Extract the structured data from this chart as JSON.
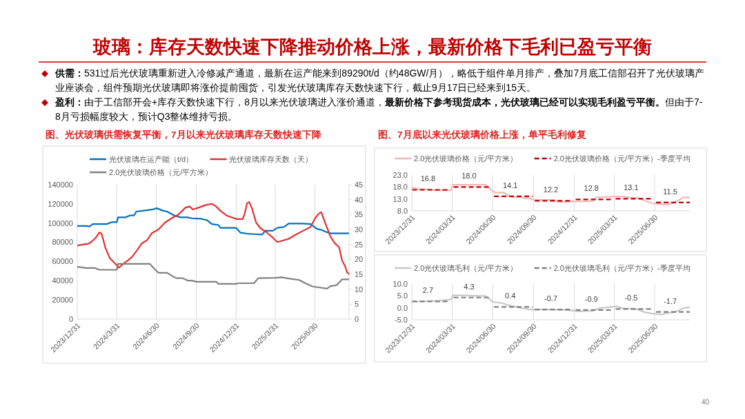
{
  "chart_data": [
    {
      "type": "other",
      "title": "玻璃：库存天数快速下降推动价格上涨，最新价格下毛利已盈亏平衡",
      "annotations": [
        "供需：",
        "531过后光伏玻璃重新进入冷修减产通道，最新在运产能来到89290t/d（约48GW/月），略低于组件单月排产，叠加7月底工信部召开了光伏玻璃产业座谈会，组件预期光伏玻璃即将涨价提前囤货，引发光伏玻璃库存天数快速下行，截止9月17日已经来到15天。",
        "盈利：",
        "由于工信部开会+库存天数快速下行，8月以来光伏玻璃进入涨价通道，",
        "最新价格下参考现货成本，光伏玻璃已经可以实现毛利盈亏平衡。",
        "但由于7-8月亏损幅度较大，预计Q3整体维持亏损。",
        "40"
      ]
    },
    {
      "type": "line",
      "title": "图、光伏玻璃供需恢复平衡，7月以来光伏玻璃库存天数快速下降",
      "xlim": [
        "2023-12-31",
        "2025-09-17"
      ],
      "xticks": [
        {
          "value": "2023-12-31",
          "label": "2023/12/31"
        },
        {
          "value": "2024-03-31",
          "label": "2024/3/31"
        },
        {
          "value": "2024-06-30",
          "label": "2024/6/30"
        },
        {
          "value": "2024-09-30",
          "label": "2024/9/30"
        },
        {
          "value": "2024-12-31",
          "label": "2024/12/31"
        },
        {
          "value": "2025-03-31",
          "label": "2025/3/31"
        },
        {
          "value": "2025-06-30",
          "label": "2025/6/30"
        }
      ],
      "ylim": [
        0,
        140000
      ],
      "yticks": [
        0,
        20000,
        40000,
        60000,
        80000,
        100000,
        120000,
        140000
      ],
      "y2lim": [
        0,
        45
      ],
      "y2ticks": [
        0,
        5,
        10,
        15,
        20,
        25,
        30,
        35,
        40,
        45
      ],
      "grid": "x",
      "legend": "top",
      "series": [
        {
          "name": "光伏玻璃在运产能（t/d）",
          "color": "#0070c0",
          "x": [
            "2023-12-31",
            "2024-01-20",
            "2024-01-28",
            "2024-02-05",
            "2024-03-08",
            "2024-03-20",
            "2024-03-31",
            "2024-04-03",
            "2024-04-20",
            "2024-05-01",
            "2024-05-10",
            "2024-05-15",
            "2024-06-01",
            "2024-06-20",
            "2024-07-01",
            "2024-07-15",
            "2024-07-25",
            "2024-08-10",
            "2024-08-25",
            "2024-09-10",
            "2024-09-20",
            "2024-10-10",
            "2024-10-25",
            "2024-11-05",
            "2024-11-20",
            "2024-11-25",
            "2024-12-31",
            "2025-01-10",
            "2025-01-25",
            "2025-02-10",
            "2025-03-01",
            "2025-03-08",
            "2025-03-25",
            "2025-04-05",
            "2025-04-20",
            "2025-05-01",
            "2025-06-01",
            "2025-06-20",
            "2025-07-05",
            "2025-07-15",
            "2025-07-25",
            "2025-08-05",
            "2025-09-17"
          ],
          "values": [
            97000,
            97000,
            96500,
            99000,
            99000,
            101000,
            101000,
            106000,
            106000,
            108000,
            108000,
            112000,
            113000,
            114000,
            115500,
            113000,
            112000,
            108000,
            106000,
            106000,
            105000,
            104500,
            103000,
            99000,
            98000,
            95000,
            95000,
            90000,
            89000,
            88500,
            88000,
            92000,
            92000,
            95000,
            96000,
            99500,
            99500,
            99000,
            94000,
            93000,
            91000,
            89300,
            89300
          ]
        },
        {
          "name": "光伏玻璃库存天数（天）",
          "color": "#e0302f",
          "axis": "y2",
          "x": [
            "2023-12-31",
            "2024-01-15",
            "2024-01-25",
            "2024-02-01",
            "2024-02-12",
            "2024-02-20",
            "2024-02-25",
            "2024-03-05",
            "2024-03-15",
            "2024-03-31",
            "2024-04-05",
            "2024-04-15",
            "2024-04-25",
            "2024-05-05",
            "2024-05-15",
            "2024-05-28",
            "2024-06-08",
            "2024-06-20",
            "2024-07-05",
            "2024-07-20",
            "2024-08-05",
            "2024-08-20",
            "2024-09-05",
            "2024-09-15",
            "2024-09-22",
            "2024-10-05",
            "2024-10-20",
            "2024-11-05",
            "2024-11-15",
            "2024-11-25",
            "2024-12-10",
            "2024-12-31",
            "2025-01-15",
            "2025-01-20",
            "2025-01-25",
            "2025-01-30",
            "2025-02-05",
            "2025-02-15",
            "2025-02-25",
            "2025-03-10",
            "2025-03-25",
            "2025-04-05",
            "2025-04-15",
            "2025-05-01",
            "2025-05-15",
            "2025-06-01",
            "2025-06-20",
            "2025-07-01",
            "2025-07-10",
            "2025-07-15",
            "2025-07-25",
            "2025-08-05",
            "2025-08-15",
            "2025-08-25",
            "2025-09-01",
            "2025-09-08",
            "2025-09-12",
            "2025-09-17"
          ],
          "values": [
            24.6,
            25,
            25.2,
            25.8,
            27.3,
            29,
            28.6,
            23.8,
            20.4,
            18,
            17.2,
            18.5,
            19.6,
            20.8,
            22.7,
            25.4,
            26.3,
            28.8,
            30,
            32.3,
            33.8,
            35,
            37.3,
            37.7,
            36.7,
            37.3,
            38.1,
            38.6,
            37.7,
            36.2,
            34.6,
            33.5,
            33.5,
            35.4,
            38.8,
            39.2,
            37.3,
            32.3,
            30.4,
            29.2,
            27.3,
            25.8,
            26.2,
            26.9,
            28.1,
            29.4,
            30.8,
            33.8,
            35.4,
            35.8,
            31.9,
            27.7,
            25.4,
            24.1,
            19.6,
            17.7,
            15.8,
            15
          ]
        },
        {
          "name": "2.0光伏玻璃价格（元/平方米）",
          "color": "#808080",
          "axis": "y2",
          "x": [
            "2023-12-31",
            "2024-01-20",
            "2024-02-10",
            "2024-02-20",
            "2024-03-31",
            "2024-04-03",
            "2024-06-15",
            "2024-06-25",
            "2024-07-05",
            "2024-07-25",
            "2024-08-05",
            "2024-08-15",
            "2024-08-30",
            "2024-09-10",
            "2024-09-20",
            "2024-10-01",
            "2024-11-15",
            "2024-11-20",
            "2024-12-31",
            "2025-01-05",
            "2025-02-10",
            "2025-02-20",
            "2025-04-01",
            "2025-04-15",
            "2025-05-01",
            "2025-05-25",
            "2025-06-10",
            "2025-06-25",
            "2025-07-15",
            "2025-07-28",
            "2025-08-05",
            "2025-08-20",
            "2025-09-01",
            "2025-09-17"
          ],
          "values": [
            17.5,
            17.1,
            17.1,
            16.5,
            16.5,
            18.5,
            18.5,
            16.9,
            15.5,
            15.5,
            14.5,
            13.7,
            13.7,
            12.9,
            12.9,
            12.5,
            12.5,
            11.8,
            11.8,
            12,
            12,
            13.7,
            13.8,
            14,
            13.6,
            13.1,
            11.9,
            10.9,
            10.5,
            10.2,
            11,
            11.4,
            13.3,
            13.3
          ]
        }
      ]
    },
    {
      "type": "line",
      "title": "图、7月底以来光伏玻璃价格上涨，单平毛利修复",
      "xlim": [
        "2023-12-31",
        "2025-09-17"
      ],
      "xticks": [
        {
          "value": "2023-12-31",
          "label": "2023/12/31"
        },
        {
          "value": "2024-03-31",
          "label": "2024/03/31"
        },
        {
          "value": "2024-06-30",
          "label": "2024/06/30"
        },
        {
          "value": "2024-09-30",
          "label": "2024/09/30"
        },
        {
          "value": "2024-12-31",
          "label": "2024/12/31"
        },
        {
          "value": "2025-03-31",
          "label": "2025/03/31"
        },
        {
          "value": "2025-06-30",
          "label": "2025/06/30"
        }
      ],
      "ylim": [
        8,
        23
      ],
      "yticks": [
        {
          "value": 8,
          "label": "8.0"
        },
        {
          "value": 13,
          "label": "13.0"
        },
        {
          "value": 18,
          "label": "18.0"
        },
        {
          "value": 23,
          "label": "23.0"
        }
      ],
      "grid": "x",
      "legend": "top",
      "series": [
        {
          "name": "2.0光伏玻璃价格（元/平方米）",
          "color": "#f4b6b6",
          "x": [
            "2023-12-31",
            "2024-01-15",
            "2024-02-10",
            "2024-02-20",
            "2024-03-28",
            "2024-04-02",
            "2024-06-15",
            "2024-06-25",
            "2024-07-05",
            "2024-07-25",
            "2024-08-05",
            "2024-08-15",
            "2024-08-30",
            "2024-09-10",
            "2024-09-20",
            "2024-10-01",
            "2024-11-15",
            "2024-11-25",
            "2024-12-31",
            "2025-02-10",
            "2025-02-20",
            "2025-04-01",
            "2025-04-20",
            "2025-05-01",
            "2025-05-25",
            "2025-06-10",
            "2025-06-25",
            "2025-07-15",
            "2025-07-28",
            "2025-08-10",
            "2025-08-25",
            "2025-09-01",
            "2025-09-17"
          ],
          "values": [
            17.7,
            17.2,
            17,
            16.6,
            16.6,
            18.9,
            18.9,
            17,
            15.7,
            15.7,
            14.3,
            13.8,
            13.8,
            13.3,
            13.3,
            12.6,
            12.6,
            11.7,
            11.9,
            12.1,
            13.7,
            14,
            14,
            13.7,
            13.3,
            12.1,
            11.1,
            10.8,
            10.5,
            11.3,
            12.6,
            13.6,
            13.6
          ]
        },
        {
          "name": "2.0光伏玻璃价格（元/平方米）-季度平均",
          "color": "#c00000",
          "line_style": "dashed",
          "x": [
            "2024-01-01",
            "2024-03-25",
            "2024-03-31",
            "2024-04-03",
            "2024-06-25",
            "2024-06-30",
            "2024-07-03",
            "2024-09-28",
            "2024-09-30",
            "2024-10-03",
            "2024-12-28",
            "2024-12-31",
            "2025-01-03",
            "2025-03-28",
            "2025-03-31",
            "2025-04-03",
            "2025-06-25",
            "2025-06-30",
            "2025-07-03",
            "2025-09-17"
          ],
          "values": [
            16.8,
            16.8,
            null,
            18.0,
            18.0,
            null,
            14.1,
            14.1,
            null,
            12.2,
            12.2,
            null,
            12.8,
            12.8,
            null,
            13.1,
            13.1,
            null,
            11.5,
            11.5
          ],
          "value_labels": [
            "16.8",
            null,
            null,
            "18.0",
            null,
            null,
            "14.1",
            null,
            null,
            "12.2",
            null,
            null,
            "12.8",
            null,
            null,
            "13.1",
            null,
            null,
            "11.5",
            null
          ]
        }
      ]
    },
    {
      "type": "line",
      "xlim": [
        "2023-12-31",
        "2025-09-17"
      ],
      "xticks": [
        {
          "value": "2023-12-31",
          "label": "2023/12/31"
        },
        {
          "value": "2024-03-31",
          "label": "2024/03/31"
        },
        {
          "value": "2024-06-30",
          "label": "2024/06/30"
        },
        {
          "value": "2024-09-30",
          "label": "2024/09/30"
        },
        {
          "value": "2024-12-31",
          "label": "2024/12/31"
        },
        {
          "value": "2025-03-31",
          "label": "2025/03/31"
        },
        {
          "value": "2025-06-30",
          "label": "2025/06/30"
        }
      ],
      "ylim": [
        -5,
        10
      ],
      "yticks": [
        {
          "value": -5,
          "label": "-5.0"
        },
        {
          "value": 0,
          "label": "0.0"
        },
        {
          "value": 5,
          "label": "5.0"
        },
        {
          "value": 10,
          "label": "10.0"
        }
      ],
      "grid": "x",
      "legend": "top",
      "series": [
        {
          "name": "2.0光伏玻璃毛利（元/平方米）",
          "color": "#c8c8c8",
          "x": [
            "2023-12-31",
            "2024-03-01",
            "2024-03-28",
            "2024-04-02",
            "2024-06-15",
            "2024-06-30",
            "2024-07-20",
            "2024-08-10",
            "2024-08-30",
            "2024-09-20",
            "2024-10-10",
            "2024-11-10",
            "2024-12-15",
            "2025-01-10",
            "2025-02-10",
            "2025-02-25",
            "2025-03-20",
            "2025-04-05",
            "2025-04-20",
            "2025-05-20",
            "2025-06-10",
            "2025-06-30",
            "2025-07-15",
            "2025-07-28",
            "2025-08-15",
            "2025-09-01",
            "2025-09-17"
          ],
          "values": [
            2.5,
            3,
            3.5,
            5.3,
            4.9,
            2.5,
            2,
            0.8,
            0.1,
            -0.7,
            -0.7,
            -0.7,
            -0.9,
            -1.5,
            -1.3,
            -0.2,
            0.3,
            0.6,
            -0.2,
            -0.5,
            -2,
            -2.5,
            -2.8,
            -2.2,
            -1.8,
            -0.2,
            0.3
          ]
        },
        {
          "name": "2.0光伏玻璃毛利（元/平方米）-季度平均",
          "color": "#7f7f7f",
          "line_style": "dashed",
          "x": [
            "2024-01-01",
            "2024-03-25",
            "2024-03-31",
            "2024-04-03",
            "2024-06-25",
            "2024-06-30",
            "2024-07-03",
            "2024-09-28",
            "2024-09-30",
            "2024-10-03",
            "2024-12-28",
            "2024-12-31",
            "2025-01-03",
            "2025-03-28",
            "2025-03-31",
            "2025-04-03",
            "2025-06-25",
            "2025-06-30",
            "2025-07-03",
            "2025-09-17"
          ],
          "values": [
            2.7,
            2.7,
            null,
            4.3,
            4.3,
            null,
            0.4,
            0.4,
            null,
            -0.7,
            -0.7,
            null,
            -0.9,
            -0.9,
            null,
            -0.5,
            -0.5,
            null,
            -1.7,
            -1.7
          ],
          "value_labels": [
            "2.7",
            null,
            null,
            "4.3",
            null,
            null,
            "0.4",
            null,
            null,
            "-0.7",
            null,
            null,
            "-0.9",
            null,
            null,
            "-0.5",
            null,
            null,
            "-1.7",
            null
          ]
        }
      ]
    }
  ]
}
